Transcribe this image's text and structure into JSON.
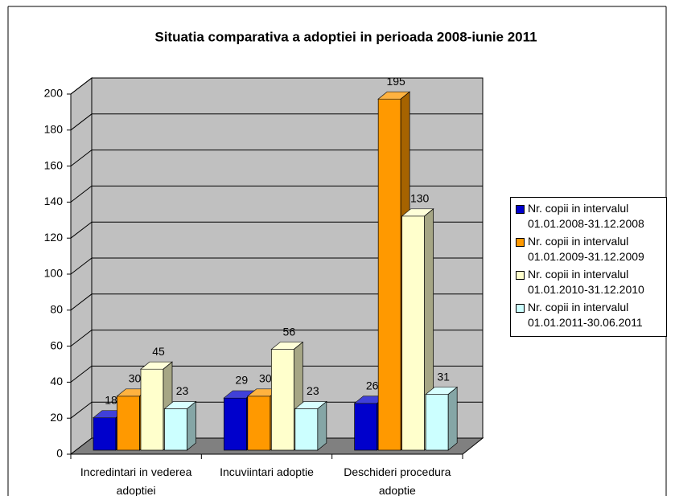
{
  "chart_data": {
    "type": "bar3d",
    "title": "Situatia comparativa a adoptiei in perioada 2008-iunie 2011",
    "categories": [
      "Incredintari in vederea adoptiei",
      "Incuviintari adoptie",
      "Deschideri procedura adoptie"
    ],
    "series": [
      {
        "name": "Nr. copii in intervalul 01.01.2008-31.12.2008",
        "color": "#0000cc",
        "values": [
          18,
          29,
          26
        ]
      },
      {
        "name": "Nr. copii in intervalul 01.01.2009-31.12.2009",
        "color": "#ff9900",
        "values": [
          30,
          30,
          195
        ]
      },
      {
        "name": "Nr. copii in intervalul 01.01.2010-31.12.2010",
        "color": "#ffffcc",
        "values": [
          45,
          56,
          130
        ]
      },
      {
        "name": "Nr. copii in intervalul 01.01.2011-30.06.2011",
        "color": "#ccffff",
        "values": [
          23,
          23,
          31
        ]
      }
    ],
    "ylim": [
      0,
      200
    ],
    "yticks": [
      0,
      20,
      40,
      60,
      80,
      100,
      120,
      140,
      160,
      180,
      200
    ],
    "grid": true,
    "legend": "right"
  }
}
